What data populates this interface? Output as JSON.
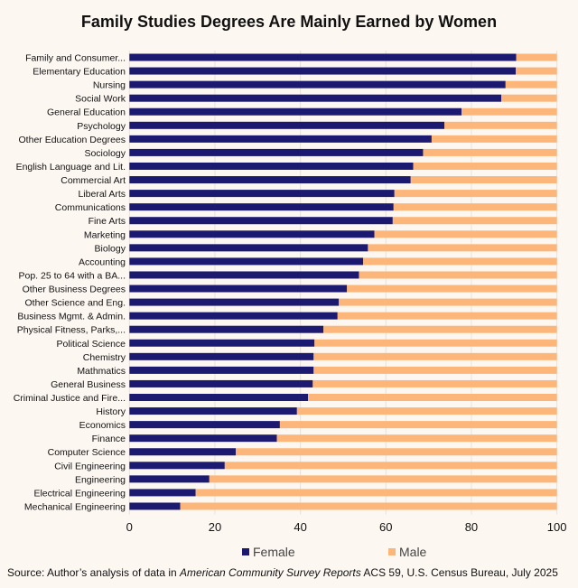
{
  "chart_data": {
    "type": "bar",
    "orientation": "horizontal",
    "stacked": true,
    "title": "Family Studies Degrees Are Mainly Earned by Women",
    "categories": [
      "Family and Consumer...",
      "Elementary Education",
      "Nursing",
      "Social Work",
      "General Education",
      "Psychology",
      "Other Education Degrees",
      "Sociology",
      "English Language and Lit.",
      "Commercial Art",
      "Liberal Arts",
      "Communications",
      "Fine Arts",
      "Marketing",
      "Biology",
      "Accounting",
      "Pop. 25 to 64 with a BA...",
      "Other Business Degrees",
      "Other Science and Eng.",
      "Business Mgmt. & Admin.",
      "Physical Fitness, Parks,...",
      "Political Science",
      "Chemistry",
      "Mathmatics",
      "General Business",
      "Criminal Justice and Fire...",
      "History",
      "Economics",
      "Finance",
      "Computer Science",
      "Civil Engineering",
      "Engineering",
      "Electrical Engineering",
      "Mechanical Engineering"
    ],
    "series": [
      {
        "name": "Female",
        "color": "#1c1a70",
        "values": [
          90.5,
          90.4,
          88.0,
          87.0,
          77.7,
          73.7,
          70.7,
          68.7,
          66.4,
          65.8,
          62.0,
          61.8,
          61.6,
          57.3,
          55.8,
          54.7,
          53.7,
          50.9,
          49.0,
          48.7,
          45.4,
          43.3,
          43.1,
          43.1,
          42.9,
          41.8,
          39.2,
          35.2,
          34.5,
          24.9,
          22.3,
          18.7,
          15.5,
          11.9
        ]
      },
      {
        "name": "Male",
        "color": "#fdb67a",
        "values": [
          9.5,
          9.6,
          12.0,
          13.0,
          22.3,
          26.3,
          29.3,
          31.3,
          33.6,
          34.2,
          38.0,
          38.2,
          38.4,
          42.7,
          44.2,
          45.3,
          46.3,
          49.1,
          51.0,
          51.3,
          54.6,
          56.7,
          56.9,
          56.9,
          57.1,
          58.2,
          60.8,
          64.8,
          65.5,
          75.1,
          77.7,
          81.3,
          84.5,
          88.1
        ]
      }
    ],
    "xlim": [
      0,
      100
    ],
    "xticks": [
      0,
      20,
      40,
      60,
      80,
      100
    ],
    "grid": true,
    "legend": "bottom"
  },
  "source": {
    "prefix": "Source: Author’s analysis of data in ",
    "italic": "American Community Survey Reports",
    "suffix": " ACS 59, U.S. Census Bureau, July 2025"
  }
}
